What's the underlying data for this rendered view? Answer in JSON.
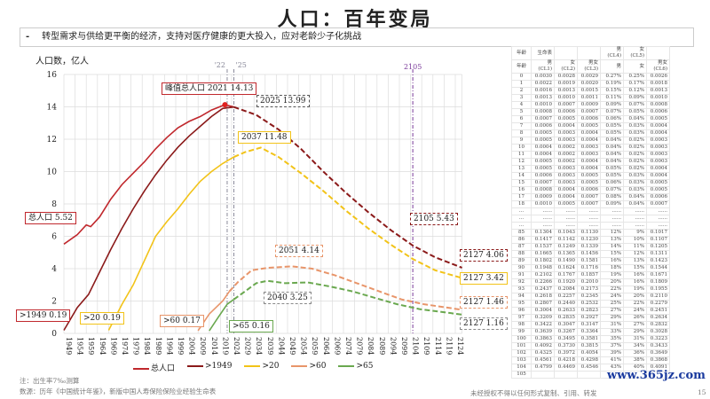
{
  "title": "人口：百年变局",
  "subtitle": "转型需求与供给更平衡的经济，支持对医疗健康的更大投入，应对老龄少子化挑战",
  "bullet": "-",
  "chart_data": {
    "type": "line",
    "ylabel": "人口数，亿人",
    "ylim": [
      0,
      16
    ],
    "yticks": [
      0,
      2,
      4,
      6,
      8,
      10,
      12,
      14,
      16
    ],
    "xlim": [
      1949,
      2127
    ],
    "xticks": [
      1949,
      1954,
      1959,
      1964,
      1969,
      1974,
      1979,
      1984,
      1989,
      1994,
      1999,
      2004,
      2009,
      2014,
      2019,
      2024,
      2029,
      2034,
      2039,
      2044,
      2049,
      2054,
      2059,
      2064,
      2069,
      2074,
      2079,
      2084,
      2089,
      2094,
      2099,
      2104,
      2109,
      2114,
      2119,
      2124
    ],
    "grid": true,
    "vlines": [
      {
        "x": 2022,
        "label": "'22",
        "color": "#8a8a9a"
      },
      {
        "x": 2025,
        "label": "'25",
        "color": "#8a8a9a"
      },
      {
        "x": 2105,
        "label": "2105",
        "color": "#7a3a9a"
      }
    ],
    "series": [
      {
        "name": "总人口",
        "color": "#c0282d",
        "points": [
          [
            1949,
            5.52
          ],
          [
            1955,
            6.1
          ],
          [
            1959,
            6.7
          ],
          [
            1961,
            6.6
          ],
          [
            1965,
            7.2
          ],
          [
            1970,
            8.3
          ],
          [
            1975,
            9.2
          ],
          [
            1980,
            9.9
          ],
          [
            1985,
            10.6
          ],
          [
            1990,
            11.4
          ],
          [
            1995,
            12.1
          ],
          [
            2000,
            12.7
          ],
          [
            2005,
            13.1
          ],
          [
            2010,
            13.4
          ],
          [
            2015,
            13.8
          ],
          [
            2021,
            14.13
          ],
          [
            2025,
            13.99
          ]
        ],
        "dashed_from": null
      },
      {
        "name": ">1949",
        "color": "#8b1a1a",
        "points": [
          [
            1949,
            0.19
          ],
          [
            1955,
            1.6
          ],
          [
            1960,
            2.4
          ],
          [
            1965,
            3.8
          ],
          [
            1970,
            5.2
          ],
          [
            1975,
            6.5
          ],
          [
            1980,
            7.7
          ],
          [
            1985,
            8.8
          ],
          [
            1990,
            9.8
          ],
          [
            1995,
            10.7
          ],
          [
            2000,
            11.5
          ],
          [
            2005,
            12.2
          ],
          [
            2010,
            12.8
          ],
          [
            2015,
            13.4
          ],
          [
            2020,
            13.9
          ],
          [
            2025,
            13.99
          ],
          [
            2035,
            13.5
          ],
          [
            2045,
            12.6
          ],
          [
            2055,
            11.4
          ],
          [
            2065,
            10.0
          ],
          [
            2075,
            8.7
          ],
          [
            2085,
            7.5
          ],
          [
            2095,
            6.4
          ],
          [
            2105,
            5.43
          ],
          [
            2115,
            4.7
          ],
          [
            2127,
            4.06
          ]
        ],
        "dashed_from": 2025
      },
      {
        "name": ">20",
        "color": "#f2c318",
        "points": [
          [
            1969,
            0.19
          ],
          [
            1975,
            1.8
          ],
          [
            1980,
            3.0
          ],
          [
            1985,
            4.5
          ],
          [
            1990,
            6.0
          ],
          [
            1995,
            6.9
          ],
          [
            2000,
            7.7
          ],
          [
            2005,
            8.6
          ],
          [
            2010,
            9.4
          ],
          [
            2015,
            10.0
          ],
          [
            2020,
            10.5
          ],
          [
            2025,
            10.9
          ],
          [
            2030,
            11.2
          ],
          [
            2037,
            11.48
          ],
          [
            2045,
            10.9
          ],
          [
            2055,
            9.9
          ],
          [
            2065,
            8.8
          ],
          [
            2075,
            7.6
          ],
          [
            2085,
            6.5
          ],
          [
            2095,
            5.5
          ],
          [
            2105,
            4.6
          ],
          [
            2115,
            3.9
          ],
          [
            2127,
            3.42
          ]
        ],
        "dashed_from": 2025
      },
      {
        "name": ">60",
        "color": "#e8956a",
        "points": [
          [
            2009,
            0.17
          ],
          [
            2014,
            1.2
          ],
          [
            2020,
            2.0
          ],
          [
            2023,
            2.6
          ],
          [
            2027,
            3.2
          ],
          [
            2033,
            3.9
          ],
          [
            2040,
            4.05
          ],
          [
            2051,
            4.14
          ],
          [
            2060,
            4.0
          ],
          [
            2070,
            3.6
          ],
          [
            2080,
            3.1
          ],
          [
            2090,
            2.6
          ],
          [
            2100,
            2.1
          ],
          [
            2110,
            1.8
          ],
          [
            2127,
            1.46
          ]
        ],
        "dashed_from": 2023
      },
      {
        "name": ">65",
        "color": "#6aa84f",
        "points": [
          [
            2014,
            0.16
          ],
          [
            2018,
            1.0
          ],
          [
            2022,
            1.8
          ],
          [
            2025,
            2.1
          ],
          [
            2030,
            2.6
          ],
          [
            2035,
            3.1
          ],
          [
            2040,
            3.25
          ],
          [
            2048,
            3.1
          ],
          [
            2058,
            3.15
          ],
          [
            2068,
            2.9
          ],
          [
            2078,
            2.6
          ],
          [
            2088,
            2.2
          ],
          [
            2098,
            1.8
          ],
          [
            2108,
            1.5
          ],
          [
            2127,
            1.16
          ]
        ],
        "dashed_from": 2025
      }
    ],
    "annotations": [
      {
        "text": "峰值总人口 2021 14.13",
        "color": "#c0282d",
        "style": "solid"
      },
      {
        "text": "2025 13.99",
        "color": "#555",
        "style": "dashed"
      },
      {
        "text": "2037 11.48",
        "color": "#f2c318",
        "style": "solid"
      },
      {
        "text": "2051 4.14",
        "color": "#e8956a",
        "style": "dashed"
      },
      {
        "text": "2040 3.25",
        "color": "#888",
        "style": "dashed"
      },
      {
        "text": "2105 5.43",
        "color": "#8b1a1a",
        "style": "dashed"
      },
      {
        "text": "2127 4.06",
        "color": "#8b1a1a",
        "style": "dashed"
      },
      {
        "text": "2127 3.42",
        "color": "#f2c318",
        "style": "solid"
      },
      {
        "text": "2127 1.46",
        "color": "#e8956a",
        "style": "dashed"
      },
      {
        "text": "2127 1.16",
        "color": "#888",
        "style": "dashed"
      },
      {
        "text": "总人口 5.52",
        "color": "#c0282d",
        "style": "solid"
      },
      {
        "text": ">1949 0.19",
        "color": "#c0282d",
        "style": "solid"
      },
      {
        "text": ">20 0.19",
        "color": "#f2c318",
        "style": "solid"
      },
      {
        "text": ">60 0.17",
        "color": "#e8956a",
        "style": "solid"
      },
      {
        "text": ">65 0.16",
        "color": "#6aa84f",
        "style": "solid"
      }
    ]
  },
  "table": {
    "header": [
      [
        "年龄",
        "生命表",
        "",
        "",
        "男(CL4)",
        "女(CL5)",
        ""
      ],
      [
        "年龄",
        "男(CL1)",
        "女(CL2)",
        "男女(CL3)",
        "男",
        "女",
        "男女(CL6)"
      ]
    ],
    "rows": [
      [
        "0",
        "0.0030",
        "0.0028",
        "0.0029",
        "0.27%",
        "0.25%",
        "0.0026"
      ],
      [
        "1",
        "0.0022",
        "0.0019",
        "0.0020",
        "0.19%",
        "0.17%",
        "0.0018"
      ],
      [
        "2",
        "0.0016",
        "0.0013",
        "0.0015",
        "0.15%",
        "0.12%",
        "0.0013"
      ],
      [
        "3",
        "0.0013",
        "0.0010",
        "0.0011",
        "0.11%",
        "0.09%",
        "0.0010"
      ],
      [
        "4",
        "0.0010",
        "0.0007",
        "0.0009",
        "0.09%",
        "0.07%",
        "0.0008"
      ],
      [
        "5",
        "0.0008",
        "0.0006",
        "0.0007",
        "0.07%",
        "0.05%",
        "0.0006"
      ],
      [
        "6",
        "0.0007",
        "0.0005",
        "0.0006",
        "0.06%",
        "0.04%",
        "0.0005"
      ],
      [
        "7",
        "0.0006",
        "0.0004",
        "0.0005",
        "0.05%",
        "0.03%",
        "0.0004"
      ],
      [
        "8",
        "0.0005",
        "0.0003",
        "0.0004",
        "0.05%",
        "0.03%",
        "0.0004"
      ],
      [
        "9",
        "0.0005",
        "0.0003",
        "0.0004",
        "0.04%",
        "0.02%",
        "0.0003"
      ],
      [
        "10",
        "0.0004",
        "0.0002",
        "0.0003",
        "0.04%",
        "0.02%",
        "0.0003"
      ],
      [
        "11",
        "0.0004",
        "0.0002",
        "0.0003",
        "0.04%",
        "0.02%",
        "0.0003"
      ],
      [
        "12",
        "0.0005",
        "0.0002",
        "0.0004",
        "0.04%",
        "0.02%",
        "0.0003"
      ],
      [
        "13",
        "0.0005",
        "0.0003",
        "0.0004",
        "0.05%",
        "0.02%",
        "0.0004"
      ],
      [
        "14",
        "0.0006",
        "0.0003",
        "0.0005",
        "0.05%",
        "0.03%",
        "0.0004"
      ],
      [
        "15",
        "0.0007",
        "0.0003",
        "0.0005",
        "0.06%",
        "0.03%",
        "0.0005"
      ],
      [
        "16",
        "0.0008",
        "0.0004",
        "0.0006",
        "0.07%",
        "0.03%",
        "0.0005"
      ],
      [
        "17",
        "0.0009",
        "0.0004",
        "0.0007",
        "0.08%",
        "0.04%",
        "0.0006"
      ],
      [
        "18",
        "0.0010",
        "0.0005",
        "0.0007",
        "0.09%",
        "0.04%",
        "0.0007"
      ],
      [
        "...",
        "......",
        "......",
        "......",
        "......",
        "......",
        "......"
      ],
      [
        "...",
        "......",
        "......",
        "......",
        "......",
        "......",
        "......"
      ],
      [
        "...",
        "......",
        "......",
        "......",
        "......",
        "......",
        "......"
      ],
      [
        "85",
        "0.1304",
        "0.1043",
        "0.1130",
        "12%",
        "9%",
        "0.1017"
      ],
      [
        "86",
        "0.1417",
        "0.1142",
        "0.1230",
        "13%",
        "10%",
        "0.1107"
      ],
      [
        "87",
        "0.1537",
        "0.1249",
        "0.1339",
        "14%",
        "11%",
        "0.1205"
      ],
      [
        "88",
        "0.1665",
        "0.1365",
        "0.1456",
        "15%",
        "12%",
        "0.1311"
      ],
      [
        "89",
        "0.1802",
        "0.1490",
        "0.1581",
        "16%",
        "13%",
        "0.1423"
      ],
      [
        "90",
        "0.1948",
        "0.1624",
        "0.1716",
        "18%",
        "15%",
        "0.1544"
      ],
      [
        "91",
        "0.2102",
        "0.1767",
        "0.1857",
        "19%",
        "16%",
        "0.1671"
      ],
      [
        "92",
        "0.2266",
        "0.1920",
        "0.2010",
        "20%",
        "16%",
        "0.1809"
      ],
      [
        "93",
        "0.2437",
        "0.2084",
        "0.2173",
        "22%",
        "19%",
        "0.1955"
      ],
      [
        "94",
        "0.2618",
        "0.2257",
        "0.2345",
        "24%",
        "20%",
        "0.2110"
      ],
      [
        "95",
        "0.2807",
        "0.2440",
        "0.2532",
        "25%",
        "22%",
        "0.2279"
      ],
      [
        "96",
        "0.3004",
        "0.2633",
        "0.2823",
        "27%",
        "24%",
        "0.2451"
      ],
      [
        "97",
        "0.3209",
        "0.2835",
        "0.2927",
        "29%",
        "26%",
        "0.2634"
      ],
      [
        "98",
        "0.3422",
        "0.3047",
        "0.3147",
        "31%",
        "27%",
        "0.2832"
      ],
      [
        "99",
        "0.3639",
        "0.3267",
        "0.3364",
        "33%",
        "29%",
        "0.3028"
      ],
      [
        "100",
        "0.3863",
        "0.3495",
        "0.3581",
        "35%",
        "31%",
        "0.3223"
      ],
      [
        "101",
        "0.4092",
        "0.3730",
        "0.3815",
        "37%",
        "34%",
        "0.3433"
      ],
      [
        "102",
        "0.4325",
        "0.3972",
        "0.4054",
        "39%",
        "36%",
        "0.3649"
      ],
      [
        "103",
        "0.4561",
        "0.4218",
        "0.4298",
        "41%",
        "38%",
        "0.3868"
      ],
      [
        "104",
        "0.4799",
        "0.4469",
        "0.4546",
        "43%",
        "40%",
        "0.4091"
      ],
      [
        "105",
        "",
        "",
        "",
        "",
        "",
        ""
      ]
    ]
  },
  "footer": {
    "note": "注：出生率7‰测算",
    "source": "数源：历年《中国统计年鉴》，新版中国人寿保险保险业经验生命表",
    "disclaimer": "未经授权不得以任何形式复制、引用、转发",
    "page": "15",
    "watermark": "www.365jz.com"
  }
}
